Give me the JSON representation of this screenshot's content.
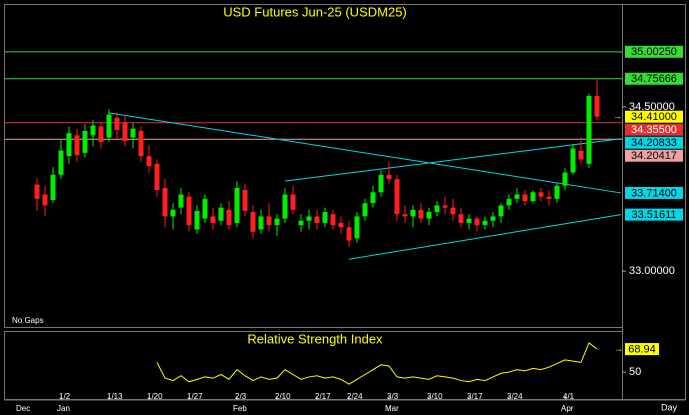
{
  "chart_data": [
    {
      "type": "candlestick",
      "title": "USD Futures Jun-25 (USDM25)",
      "note": "No Gaps",
      "interval": "Day",
      "categories": [
        null,
        null,
        null,
        "1/2",
        null,
        null,
        null,
        null,
        null,
        "1/13",
        null,
        null,
        null,
        null,
        "1/20",
        null,
        null,
        null,
        null,
        "1/27",
        null,
        null,
        null,
        null,
        null,
        "2/3",
        null,
        null,
        null,
        null,
        "2/10",
        null,
        null,
        null,
        null,
        "2/17",
        null,
        null,
        null,
        "2/24",
        null,
        null,
        null,
        null,
        "3/3",
        null,
        null,
        null,
        null,
        "3/10",
        null,
        null,
        null,
        null,
        "3/17",
        null,
        null,
        null,
        null,
        "3/24",
        null,
        null,
        null,
        null,
        null,
        null,
        "4/1",
        null,
        null,
        null,
        null
      ],
      "months": [
        "Dec",
        null,
        null,
        "Jan",
        null,
        null,
        null,
        null,
        null,
        null,
        null,
        null,
        null,
        null,
        null,
        null,
        null,
        null,
        null,
        null,
        null,
        null,
        null,
        null,
        null,
        "Feb",
        null,
        null,
        null,
        null,
        null,
        null,
        null,
        null,
        null,
        null,
        null,
        null,
        null,
        null,
        null,
        null,
        null,
        null,
        "Mar",
        null,
        null,
        null,
        null,
        null,
        null,
        null,
        null,
        null,
        null,
        null,
        null,
        null,
        null,
        null,
        null,
        null,
        null,
        null,
        null,
        null,
        "Apr",
        null,
        null,
        null,
        null
      ],
      "open": [
        33.79,
        33.7,
        33.65,
        33.88,
        34.05,
        34.24,
        34.08,
        34.24,
        34.32,
        34.22,
        34.4,
        34.36,
        34.22,
        34.28,
        34.05,
        33.98,
        33.76,
        33.5,
        33.58,
        33.68,
        33.38,
        33.48,
        33.5,
        33.46,
        33.56,
        33.44,
        33.74,
        33.54,
        33.38,
        33.5,
        33.42,
        33.48,
        33.7,
        33.42,
        33.46,
        33.5,
        33.44,
        33.52,
        33.44,
        33.4,
        33.3,
        33.5,
        33.62,
        33.72,
        33.88,
        33.84,
        33.52,
        33.5,
        33.56,
        33.48,
        33.54,
        33.6,
        33.58,
        33.52,
        33.44,
        33.48,
        33.42,
        33.46,
        33.5,
        33.6,
        33.66,
        33.7,
        33.64,
        33.72,
        33.68,
        33.66,
        33.78,
        33.9,
        34.1,
        33.98,
        34.6
      ],
      "high": [
        33.85,
        33.78,
        33.95,
        34.2,
        34.32,
        34.3,
        34.34,
        34.38,
        34.36,
        34.48,
        34.45,
        34.42,
        34.35,
        34.32,
        34.15,
        34.02,
        33.84,
        33.62,
        33.76,
        33.72,
        33.6,
        33.7,
        33.58,
        33.62,
        33.64,
        33.82,
        33.8,
        33.6,
        33.56,
        33.62,
        33.52,
        33.76,
        33.78,
        33.52,
        33.56,
        33.56,
        33.58,
        33.56,
        33.5,
        33.46,
        33.54,
        33.66,
        33.78,
        33.92,
        34.0,
        33.88,
        33.6,
        33.6,
        33.62,
        33.58,
        33.64,
        33.68,
        33.66,
        33.58,
        33.52,
        33.5,
        33.5,
        33.54,
        33.62,
        33.7,
        33.76,
        33.74,
        33.74,
        33.76,
        33.74,
        33.8,
        33.94,
        34.16,
        34.22,
        34.62,
        34.76
      ],
      "low": [
        33.55,
        33.5,
        33.62,
        33.84,
        33.98,
        34.0,
        34.04,
        34.14,
        34.12,
        34.18,
        34.2,
        34.14,
        34.12,
        34.0,
        33.9,
        33.68,
        33.4,
        33.38,
        33.52,
        33.36,
        33.34,
        33.44,
        33.38,
        33.42,
        33.38,
        33.4,
        33.5,
        33.3,
        33.34,
        33.36,
        33.32,
        33.44,
        33.52,
        33.36,
        33.38,
        33.38,
        33.4,
        33.38,
        33.34,
        33.22,
        33.26,
        33.46,
        33.58,
        33.68,
        33.8,
        33.46,
        33.44,
        33.4,
        33.44,
        33.42,
        33.5,
        33.52,
        33.46,
        33.4,
        33.38,
        33.36,
        33.38,
        33.4,
        33.44,
        33.56,
        33.62,
        33.6,
        33.62,
        33.64,
        33.6,
        33.62,
        33.74,
        33.88,
        33.98,
        33.94,
        34.38
      ],
      "close": [
        33.66,
        33.6,
        33.88,
        34.1,
        34.26,
        34.06,
        34.28,
        34.33,
        34.18,
        34.43,
        34.29,
        34.19,
        34.3,
        34.05,
        33.96,
        33.74,
        33.5,
        33.56,
        33.7,
        33.42,
        33.55,
        33.66,
        33.44,
        33.58,
        33.42,
        33.76,
        33.55,
        33.36,
        33.5,
        33.42,
        33.48,
        33.7,
        33.56,
        33.46,
        33.5,
        33.44,
        33.54,
        33.42,
        33.4,
        33.28,
        33.5,
        33.62,
        33.72,
        33.88,
        33.84,
        33.52,
        33.5,
        33.56,
        33.48,
        33.54,
        33.6,
        33.58,
        33.52,
        33.44,
        33.48,
        33.42,
        33.46,
        33.5,
        33.6,
        33.66,
        33.7,
        33.64,
        33.72,
        33.68,
        33.66,
        33.78,
        33.9,
        34.12,
        34.02,
        34.6,
        34.41
      ],
      "up_color": "#00ee00",
      "down_color": "#ff2020",
      "ylim": [
        32.49,
        35.43
      ],
      "yticks": [
        {
          "value": 34.5,
          "label": "34.50000"
        },
        {
          "value": 33,
          "label": "33.00000"
        }
      ],
      "levels": [
        {
          "value": 35.0025,
          "label": "35.00250",
          "color": "#33dd33"
        },
        {
          "value": 34.75666,
          "label": "34.75666",
          "color": "#33dd33"
        },
        {
          "value": 34.355,
          "label": "34.35500",
          "color": "#e03030"
        },
        {
          "value": 34.20417,
          "label": "34.20417",
          "color": "#f0a0a0"
        }
      ],
      "last_price": {
        "value": 34.41,
        "label": "34.41000",
        "color": "#ffff00"
      },
      "trendlines": [
        {
          "x": [
            9,
            73
          ],
          "y": [
            34.445,
            33.714
          ],
          "end_label": "33.71400",
          "color": "#00d8e8"
        },
        {
          "x": [
            31,
            73
          ],
          "y": [
            33.823,
            34.20833
          ],
          "end_label": "34.20833",
          "color": "#00d8e8"
        },
        {
          "x": [
            39,
            73
          ],
          "y": [
            33.109,
            33.51611
          ],
          "end_label": "33.51611",
          "color": "#00d8e8"
        }
      ]
    },
    {
      "type": "line",
      "title": "Relative Strength Index",
      "color": "#ffff00",
      "values": [
        null,
        null,
        null,
        null,
        null,
        null,
        null,
        null,
        null,
        null,
        null,
        null,
        null,
        null,
        null,
        58,
        45,
        43,
        47,
        42,
        44,
        46,
        45,
        48,
        44,
        52,
        47,
        43,
        46,
        44,
        45,
        52,
        48,
        44,
        46,
        47,
        45,
        46,
        44,
        40,
        44,
        48,
        52,
        56,
        55,
        46,
        45,
        46,
        45,
        44,
        47,
        46,
        45,
        43,
        42,
        44,
        43,
        46,
        49,
        50,
        52,
        51,
        53,
        52,
        54,
        57,
        60,
        59,
        58,
        74,
        68.94
      ],
      "ylim": [
        27,
        83
      ],
      "yticks": [
        50
      ],
      "last_value": {
        "value": 68.94,
        "label": "68.94"
      }
    }
  ]
}
